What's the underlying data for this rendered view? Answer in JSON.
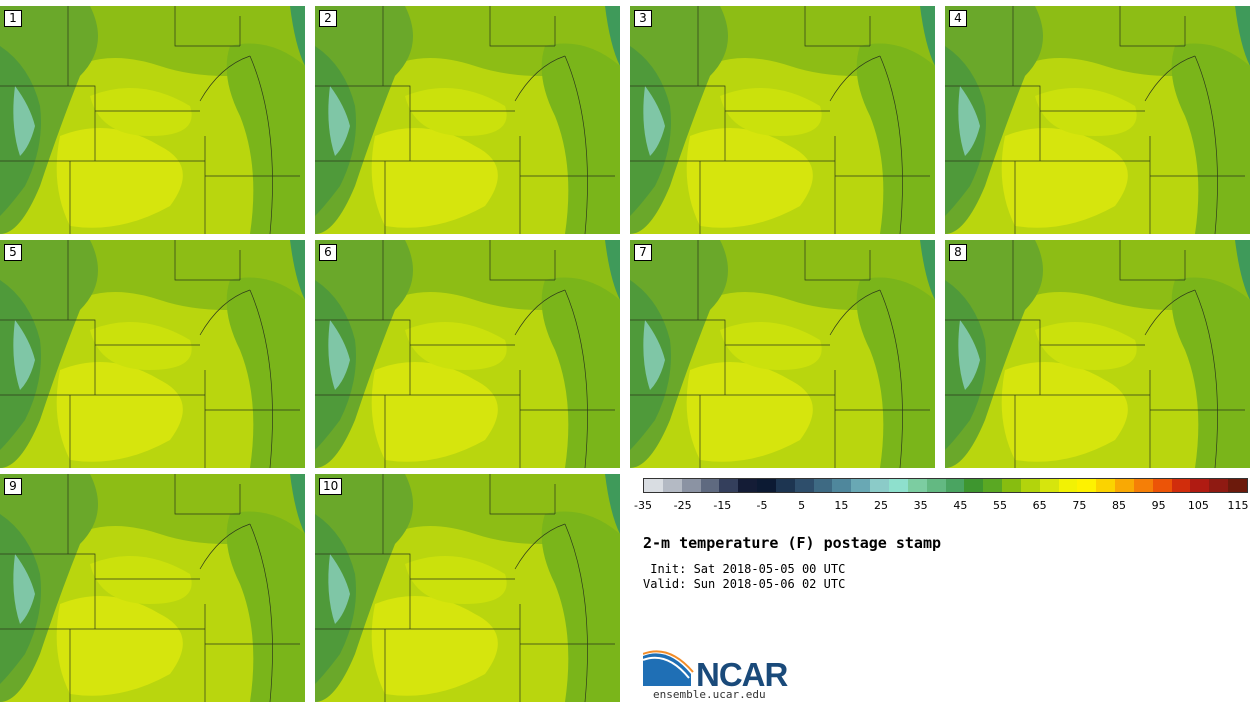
{
  "panels": [
    {
      "label": "1"
    },
    {
      "label": "2"
    },
    {
      "label": "3"
    },
    {
      "label": "4"
    },
    {
      "label": "5"
    },
    {
      "label": "6"
    },
    {
      "label": "7"
    },
    {
      "label": "8"
    },
    {
      "label": "9"
    },
    {
      "label": "10"
    }
  ],
  "colorbar": {
    "colors": [
      "#d9dde2",
      "#b4bac4",
      "#8b93a3",
      "#5f6a80",
      "#343f5c",
      "#141c36",
      "#0c1a33",
      "#1d3551",
      "#2e4e6b",
      "#3e6a83",
      "#4f879c",
      "#69a8b4",
      "#8bcbc8",
      "#8ee0cd",
      "#7ccda1",
      "#63b982",
      "#4aa461",
      "#3e962f",
      "#5aa823",
      "#87bd10",
      "#b2d40c",
      "#d6e50d",
      "#f2f204",
      "#fef200",
      "#fbd300",
      "#f9a904",
      "#f57f07",
      "#ec5407",
      "#d12d0c",
      "#b01b12",
      "#8f1a12",
      "#6c1a0c"
    ],
    "ticks": [
      "-35",
      "-25",
      "-15",
      "-5",
      "5",
      "15",
      "25",
      "35",
      "45",
      "55",
      "65",
      "75",
      "85",
      "95",
      "105",
      "115"
    ]
  },
  "title": "2-m temperature (F) postage stamp",
  "init_line": " Init: Sat 2018-05-05 00 UTC",
  "valid_line": "Valid: Sun 2018-05-06 02 UTC",
  "logo_text": "NCAR",
  "site": "ensemble.ucar.edu"
}
